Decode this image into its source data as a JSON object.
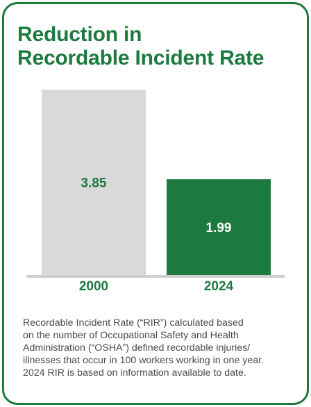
{
  "title_lines": [
    "Reduction in",
    "Recordable Incident Rate"
  ],
  "chart_data": {
    "type": "bar",
    "categories": [
      "2000",
      "2024"
    ],
    "values": [
      3.85,
      1.99
    ],
    "value_labels": [
      "3.85",
      "1.99"
    ],
    "bar_colors": [
      "#d9d9d9",
      "#1d7a3f"
    ],
    "value_label_colors": [
      "#1d7a3f",
      "#ffffff"
    ],
    "ylim": [
      0,
      4.3
    ],
    "grid": false,
    "title": "Reduction in Recordable Incident Rate",
    "xlabel": "",
    "ylabel": ""
  },
  "footnote_lines": [
    "Recordable Incident Rate (“RIR”) calculated based",
    "on the number of Occupational Safety and Health",
    "Administration (“OSHA”) defined recordable injuries/",
    "illnesses that occur in 100 workers working in one year.",
    "2024 RIR is based on information available to date."
  ],
  "colors": {
    "accent_green": "#1d7a3f",
    "bar_gray": "#d9d9d9",
    "axis_gray": "#cfcfcf",
    "text_gray": "#4a4a4a"
  }
}
